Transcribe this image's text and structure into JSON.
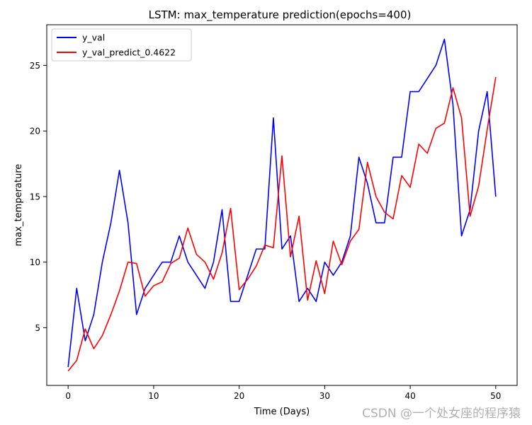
{
  "chart_data": {
    "type": "line",
    "title": "LSTM: max_temperature prediction(epochs=400)",
    "xlabel": "Time (Days)",
    "ylabel": "max_temperature",
    "xlim": [
      -2.5,
      52.5
    ],
    "ylim": [
      0.6,
      28.1
    ],
    "xticks": [
      0,
      10,
      20,
      30,
      40,
      50
    ],
    "yticks": [
      5,
      10,
      15,
      20,
      25
    ],
    "grid": false,
    "legend_position": "top-left",
    "x": [
      0,
      1,
      2,
      3,
      4,
      5,
      6,
      7,
      8,
      9,
      10,
      11,
      12,
      13,
      14,
      15,
      16,
      17,
      18,
      19,
      20,
      21,
      22,
      23,
      24,
      25,
      26,
      27,
      28,
      29,
      30,
      31,
      32,
      33,
      34,
      35,
      36,
      37,
      38,
      39,
      40,
      41,
      42,
      43,
      44,
      45,
      46,
      47,
      48,
      49,
      50
    ],
    "series": [
      {
        "name": "y_val",
        "color": "#0000ff",
        "values": [
          2,
          8,
          4,
          6,
          10,
          13,
          17,
          13,
          6,
          8,
          9,
          10,
          10,
          12,
          10,
          9,
          8,
          10,
          14,
          7,
          7,
          9,
          11,
          11,
          21,
          11,
          12,
          7,
          8,
          7,
          10,
          9,
          10,
          12,
          18,
          16,
          13,
          13,
          18,
          18,
          23,
          23,
          24,
          25,
          27,
          22,
          12,
          14,
          20,
          23,
          15
        ]
      },
      {
        "name": "y_val_predict_0.4622",
        "color": "#ff0000",
        "values": [
          1.7,
          2.5,
          4.9,
          3.4,
          4.4,
          6.0,
          7.8,
          10.0,
          9.9,
          7.4,
          8.2,
          8.5,
          9.9,
          10.3,
          12.6,
          10.6,
          10.0,
          8.7,
          10.7,
          14.1,
          7.9,
          8.7,
          9.7,
          11.3,
          11.1,
          18.1,
          10.4,
          13.5,
          7.1,
          10.1,
          7.6,
          11.6,
          9.8,
          11.6,
          12.5,
          17.6,
          15.0,
          13.8,
          13.3,
          16.6,
          15.7,
          19.0,
          18.3,
          20.2,
          20.6,
          23.3,
          21.0,
          13.5,
          15.8,
          20.1,
          24.1
        ]
      }
    ]
  },
  "watermark": "CSDN @一个处女座的程序猿"
}
